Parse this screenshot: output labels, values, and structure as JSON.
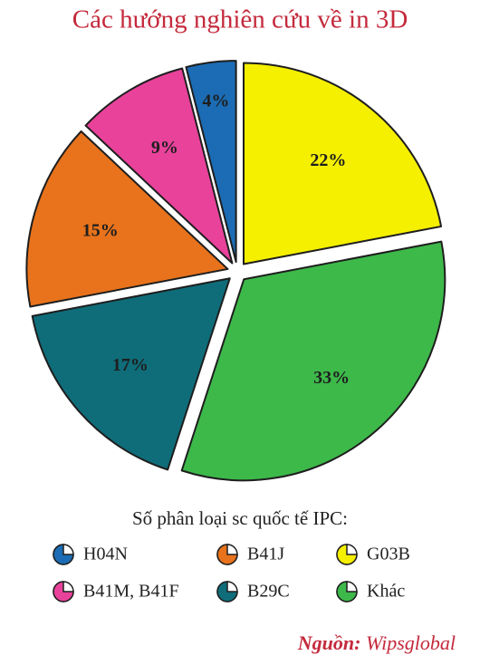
{
  "chart_data": {
    "type": "pie",
    "title": "Các hướng nghiên cứu về in 3D",
    "categories": [
      "G03B",
      "Khác",
      "B29C",
      "B41J",
      "B41M, B41F",
      "H04N"
    ],
    "values": [
      22,
      33,
      17,
      15,
      9,
      4
    ],
    "value_labels": [
      "22%",
      "33%",
      "17%",
      "15%",
      "9%",
      "4%"
    ],
    "colors": [
      "#f5ef00",
      "#3db94a",
      "#0f6d7a",
      "#e8731c",
      "#e9429b",
      "#1b6cb4"
    ],
    "legend_title": "Số phân loại sc quốc tế IPC:",
    "source_label": "Nguồn:",
    "source": "Wipsglobal"
  }
}
